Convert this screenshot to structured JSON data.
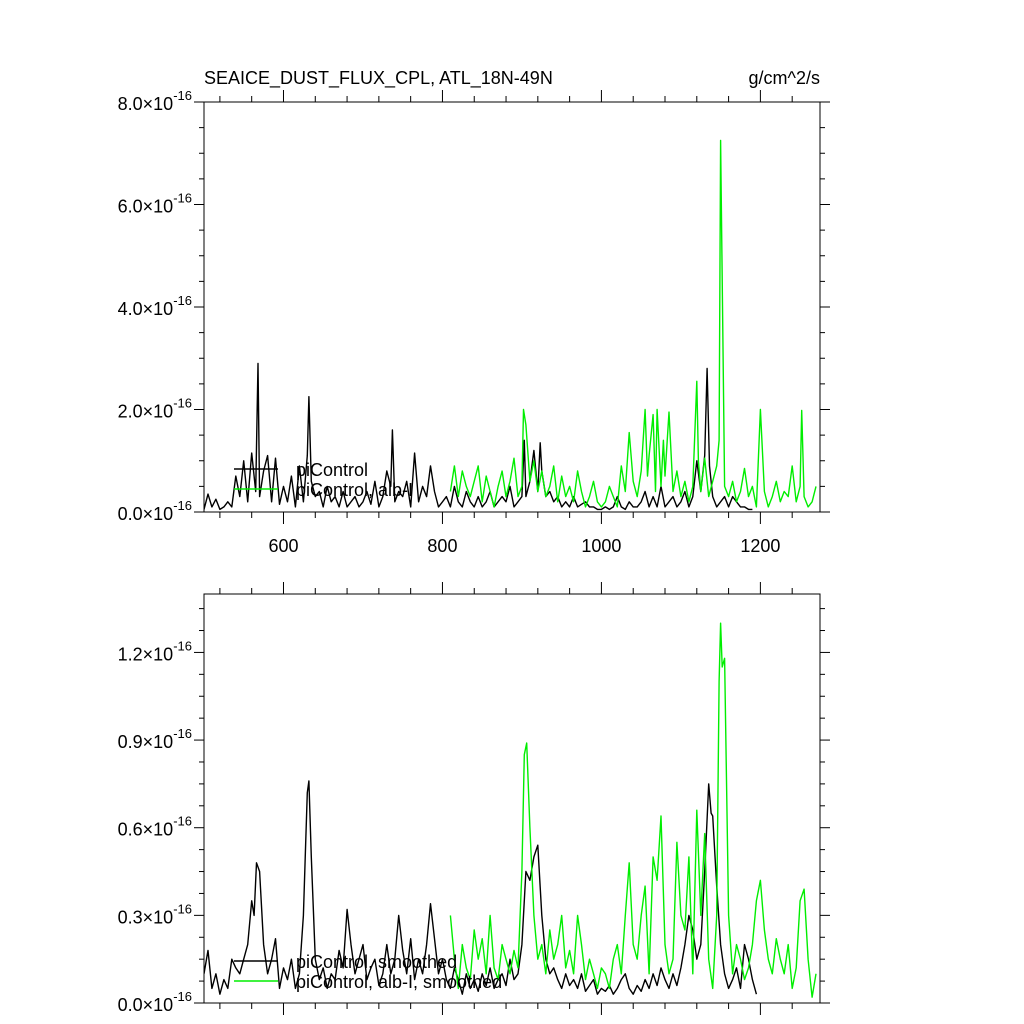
{
  "chart_data": [
    {
      "type": "line",
      "title": "SEAICE_DUST_FLUX_CPL, ATL_18N-49N",
      "units": "g/cm^2/s",
      "xlim": [
        500,
        1275
      ],
      "ylim": [
        0,
        8e-16
      ],
      "x_ticks": [
        {
          "value": 600,
          "label": "600"
        },
        {
          "value": 800,
          "label": "800"
        },
        {
          "value": 1000,
          "label": "1000"
        },
        {
          "value": 1200,
          "label": "1200"
        }
      ],
      "y_ticks": [
        {
          "value": 0.0,
          "mant": "0.0",
          "exp": "-16"
        },
        {
          "value": 2e-16,
          "mant": "2.0",
          "exp": "-16"
        },
        {
          "value": 4e-16,
          "mant": "4.0",
          "exp": "-16"
        },
        {
          "value": 6e-16,
          "mant": "6.0",
          "exp": "-16"
        },
        {
          "value": 8e-16,
          "mant": "8.0",
          "exp": "-16"
        }
      ],
      "legend_position": "lower-left",
      "series": [
        {
          "name": "piControl",
          "color": "#000000",
          "x": [
            500,
            505,
            510,
            515,
            520,
            525,
            530,
            535,
            540,
            545,
            550,
            555,
            560,
            565,
            568,
            570,
            575,
            580,
            585,
            590,
            595,
            600,
            605,
            610,
            615,
            620,
            625,
            630,
            632,
            635,
            640,
            645,
            650,
            655,
            660,
            665,
            670,
            675,
            680,
            685,
            690,
            695,
            700,
            705,
            710,
            715,
            720,
            725,
            730,
            735,
            737,
            740,
            745,
            750,
            755,
            760,
            765,
            770,
            775,
            780,
            785,
            790,
            795,
            800,
            805,
            810,
            815,
            820,
            825,
            830,
            835,
            840,
            845,
            850,
            855,
            860,
            865,
            870,
            875,
            880,
            885,
            890,
            895,
            900,
            903,
            905,
            910,
            915,
            920,
            923,
            925,
            930,
            935,
            940,
            945,
            950,
            955,
            960,
            965,
            970,
            975,
            980,
            985,
            990,
            995,
            1000,
            1005,
            1010,
            1015,
            1020,
            1025,
            1030,
            1035,
            1040,
            1045,
            1050,
            1055,
            1060,
            1065,
            1070,
            1075,
            1080,
            1085,
            1090,
            1095,
            1100,
            1105,
            1110,
            1115,
            1120,
            1125,
            1130,
            1133,
            1136,
            1140,
            1145,
            1150,
            1155,
            1160,
            1165,
            1170,
            1175,
            1180,
            1185,
            1190
          ],
          "values": [
            0.05,
            0.35,
            0.1,
            0.25,
            0.05,
            0.1,
            0.2,
            0.1,
            0.7,
            0.3,
            1.0,
            0.2,
            1.15,
            0.4,
            2.9,
            0.3,
            0.8,
            1.1,
            0.2,
            1.05,
            0.15,
            0.5,
            0.2,
            0.7,
            0.1,
            0.9,
            0.2,
            1.1,
            2.25,
            0.6,
            0.3,
            0.4,
            0.1,
            0.5,
            0.2,
            0.3,
            0.1,
            0.4,
            0.1,
            0.2,
            0.3,
            0.1,
            0.2,
            0.4,
            0.15,
            0.6,
            0.1,
            0.3,
            0.8,
            0.5,
            1.6,
            0.2,
            0.4,
            0.3,
            0.6,
            0.1,
            1.15,
            0.2,
            0.5,
            0.3,
            0.9,
            0.4,
            0.1,
            0.2,
            0.3,
            0.1,
            0.5,
            0.2,
            0.1,
            0.4,
            0.2,
            0.1,
            0.3,
            0.1,
            0.2,
            0.4,
            0.1,
            0.2,
            0.3,
            0.2,
            0.5,
            0.1,
            0.2,
            0.3,
            1.4,
            0.3,
            0.6,
            1.2,
            0.4,
            1.35,
            0.8,
            0.3,
            0.4,
            0.2,
            0.3,
            0.1,
            0.2,
            0.1,
            0.3,
            0.1,
            0.15,
            0.2,
            0.1,
            0.1,
            0.05,
            0.05,
            0.1,
            0.05,
            0.1,
            0.3,
            0.1,
            0.05,
            0.2,
            0.1,
            0.1,
            0.2,
            0.4,
            0.1,
            0.3,
            0.1,
            0.5,
            0.1,
            0.2,
            0.3,
            0.1,
            0.2,
            0.4,
            0.1,
            0.3,
            1.0,
            0.4,
            1.1,
            2.8,
            0.9,
            0.3,
            0.1,
            0.2,
            0.3,
            0.1,
            0.3,
            0.2,
            0.1,
            0.1,
            0.05,
            0.05
          ]
        },
        {
          "name": "piControl, alb-I",
          "color": "#00ee00",
          "x": [
            810,
            815,
            820,
            825,
            830,
            835,
            840,
            845,
            850,
            855,
            860,
            865,
            870,
            875,
            880,
            885,
            890,
            895,
            900,
            902,
            905,
            910,
            915,
            920,
            925,
            930,
            935,
            940,
            945,
            950,
            955,
            960,
            965,
            970,
            975,
            980,
            985,
            990,
            995,
            1000,
            1005,
            1010,
            1015,
            1020,
            1025,
            1030,
            1035,
            1040,
            1045,
            1050,
            1055,
            1058,
            1060,
            1065,
            1068,
            1070,
            1075,
            1078,
            1080,
            1085,
            1090,
            1095,
            1100,
            1105,
            1110,
            1115,
            1120,
            1122,
            1125,
            1130,
            1135,
            1140,
            1145,
            1148,
            1150,
            1155,
            1160,
            1165,
            1170,
            1175,
            1180,
            1185,
            1190,
            1195,
            1200,
            1205,
            1210,
            1215,
            1220,
            1225,
            1230,
            1235,
            1240,
            1245,
            1250,
            1252,
            1255,
            1260,
            1265,
            1270
          ],
          "values": [
            0.4,
            0.9,
            0.3,
            0.8,
            0.5,
            0.3,
            0.6,
            0.9,
            0.2,
            0.7,
            0.4,
            0.1,
            0.5,
            0.8,
            0.3,
            0.6,
            1.05,
            0.3,
            0.5,
            2.0,
            1.7,
            0.6,
            1.0,
            0.4,
            0.8,
            0.3,
            0.5,
            0.9,
            0.2,
            0.7,
            0.3,
            0.5,
            0.2,
            0.8,
            0.4,
            0.1,
            0.3,
            0.6,
            0.2,
            0.1,
            0.2,
            0.5,
            0.3,
            0.1,
            0.9,
            0.4,
            1.55,
            0.6,
            0.3,
            0.8,
            2.0,
            0.7,
            1.1,
            1.9,
            0.4,
            2.0,
            0.5,
            1.4,
            0.7,
            1.95,
            0.4,
            0.8,
            0.3,
            0.6,
            0.2,
            0.5,
            2.55,
            1.0,
            0.4,
            1.05,
            0.3,
            0.6,
            0.9,
            1.4,
            7.25,
            0.5,
            0.3,
            0.6,
            0.2,
            0.4,
            0.85,
            0.3,
            0.5,
            0.1,
            2.0,
            0.4,
            0.1,
            0.3,
            0.6,
            0.2,
            0.4,
            0.3,
            0.9,
            0.2,
            0.5,
            1.98,
            0.3,
            0.1,
            0.2,
            0.5
          ]
        }
      ]
    },
    {
      "type": "line",
      "xlim": [
        500,
        1275
      ],
      "ylim": [
        0,
        1.4e-16
      ],
      "x_ticks": [
        {
          "value": 600,
          "label": ""
        },
        {
          "value": 800,
          "label": ""
        },
        {
          "value": 1000,
          "label": ""
        },
        {
          "value": 1200,
          "label": ""
        }
      ],
      "y_ticks": [
        {
          "value": 0.0,
          "mant": "0.0",
          "exp": "-16"
        },
        {
          "value": 3e-17,
          "mant": "0.3",
          "exp": "-16"
        },
        {
          "value": 6e-17,
          "mant": "0.6",
          "exp": "-16"
        },
        {
          "value": 9e-17,
          "mant": "0.9",
          "exp": "-16"
        },
        {
          "value": 1.2e-16,
          "mant": "1.2",
          "exp": "-16"
        }
      ],
      "legend_position": "lower-left",
      "series": [
        {
          "name": "piControl, smoothed",
          "color": "#000000",
          "x": [
            500,
            505,
            510,
            515,
            520,
            525,
            530,
            535,
            540,
            545,
            550,
            555,
            560,
            563,
            566,
            570,
            575,
            580,
            585,
            590,
            595,
            600,
            605,
            610,
            615,
            620,
            625,
            628,
            630,
            632,
            635,
            640,
            645,
            650,
            655,
            660,
            665,
            670,
            675,
            680,
            685,
            690,
            695,
            700,
            705,
            710,
            715,
            720,
            725,
            730,
            735,
            740,
            745,
            750,
            755,
            760,
            765,
            770,
            775,
            780,
            785,
            790,
            795,
            800,
            805,
            810,
            815,
            820,
            825,
            830,
            835,
            840,
            845,
            850,
            855,
            860,
            865,
            870,
            875,
            880,
            885,
            890,
            895,
            900,
            905,
            910,
            915,
            920,
            925,
            930,
            935,
            940,
            945,
            950,
            955,
            960,
            965,
            970,
            975,
            980,
            985,
            990,
            995,
            1000,
            1005,
            1010,
            1015,
            1020,
            1025,
            1030,
            1035,
            1040,
            1045,
            1050,
            1055,
            1060,
            1065,
            1070,
            1075,
            1080,
            1085,
            1090,
            1095,
            1100,
            1105,
            1110,
            1115,
            1120,
            1125,
            1130,
            1135,
            1138,
            1140,
            1145,
            1150,
            1155,
            1160,
            1165,
            1170,
            1175,
            1180,
            1185,
            1190,
            1195
          ],
          "values": [
            0.1,
            0.18,
            0.05,
            0.1,
            0.03,
            0.08,
            0.05,
            0.15,
            0.12,
            0.1,
            0.15,
            0.2,
            0.35,
            0.3,
            0.48,
            0.45,
            0.2,
            0.1,
            0.15,
            0.22,
            0.05,
            0.12,
            0.08,
            0.15,
            0.05,
            0.1,
            0.3,
            0.55,
            0.72,
            0.76,
            0.5,
            0.15,
            0.08,
            0.12,
            0.05,
            0.1,
            0.08,
            0.18,
            0.12,
            0.32,
            0.2,
            0.1,
            0.15,
            0.2,
            0.08,
            0.12,
            0.15,
            0.06,
            0.1,
            0.2,
            0.1,
            0.15,
            0.3,
            0.18,
            0.1,
            0.22,
            0.08,
            0.15,
            0.1,
            0.2,
            0.34,
            0.22,
            0.1,
            0.15,
            0.08,
            0.05,
            0.12,
            0.08,
            0.03,
            0.1,
            0.05,
            0.08,
            0.04,
            0.1,
            0.06,
            0.12,
            0.05,
            0.08,
            0.1,
            0.06,
            0.15,
            0.08,
            0.1,
            0.2,
            0.45,
            0.42,
            0.5,
            0.54,
            0.3,
            0.15,
            0.1,
            0.12,
            0.08,
            0.05,
            0.1,
            0.06,
            0.08,
            0.05,
            0.1,
            0.04,
            0.06,
            0.08,
            0.03,
            0.05,
            0.04,
            0.06,
            0.03,
            0.05,
            0.08,
            0.1,
            0.05,
            0.03,
            0.06,
            0.04,
            0.08,
            0.05,
            0.1,
            0.06,
            0.12,
            0.08,
            0.05,
            0.1,
            0.06,
            0.12,
            0.2,
            0.3,
            0.25,
            0.15,
            0.2,
            0.45,
            0.75,
            0.65,
            0.64,
            0.4,
            0.2,
            0.1,
            0.05,
            0.08,
            0.12,
            0.05,
            0.2,
            0.15,
            0.08,
            0.03
          ]
        },
        {
          "name": "piControl, alb-I, smoothed",
          "color": "#00ee00",
          "x": [
            810,
            815,
            820,
            825,
            830,
            835,
            840,
            845,
            850,
            855,
            860,
            865,
            870,
            875,
            880,
            885,
            890,
            895,
            900,
            903,
            906,
            910,
            915,
            920,
            925,
            930,
            935,
            940,
            945,
            950,
            955,
            960,
            965,
            970,
            975,
            980,
            985,
            990,
            995,
            1000,
            1005,
            1010,
            1015,
            1020,
            1025,
            1030,
            1035,
            1040,
            1045,
            1050,
            1055,
            1060,
            1065,
            1070,
            1075,
            1080,
            1085,
            1090,
            1095,
            1100,
            1105,
            1110,
            1115,
            1120,
            1125,
            1130,
            1135,
            1140,
            1145,
            1148,
            1150,
            1152,
            1155,
            1160,
            1165,
            1170,
            1175,
            1180,
            1185,
            1190,
            1195,
            1200,
            1205,
            1210,
            1215,
            1220,
            1225,
            1230,
            1235,
            1240,
            1245,
            1250,
            1255,
            1260,
            1265,
            1270
          ],
          "values": [
            0.3,
            0.15,
            0.05,
            0.2,
            0.12,
            0.08,
            0.25,
            0.15,
            0.22,
            0.1,
            0.3,
            0.12,
            0.08,
            0.2,
            0.15,
            0.1,
            0.18,
            0.12,
            0.45,
            0.85,
            0.89,
            0.6,
            0.3,
            0.15,
            0.2,
            0.1,
            0.25,
            0.15,
            0.2,
            0.3,
            0.12,
            0.18,
            0.1,
            0.3,
            0.2,
            0.08,
            0.15,
            0.1,
            0.05,
            0.12,
            0.1,
            0.05,
            0.15,
            0.2,
            0.1,
            0.3,
            0.48,
            0.2,
            0.15,
            0.3,
            0.4,
            0.1,
            0.5,
            0.42,
            0.64,
            0.2,
            0.1,
            0.15,
            0.55,
            0.3,
            0.25,
            0.5,
            0.1,
            0.66,
            0.3,
            0.58,
            0.15,
            0.05,
            0.3,
            1.1,
            1.3,
            1.15,
            1.18,
            0.3,
            0.1,
            0.2,
            0.15,
            0.08,
            0.12,
            0.2,
            0.35,
            0.42,
            0.25,
            0.15,
            0.1,
            0.22,
            0.15,
            0.1,
            0.2,
            0.05,
            0.12,
            0.35,
            0.39,
            0.15,
            0.02,
            0.1
          ]
        }
      ]
    }
  ]
}
